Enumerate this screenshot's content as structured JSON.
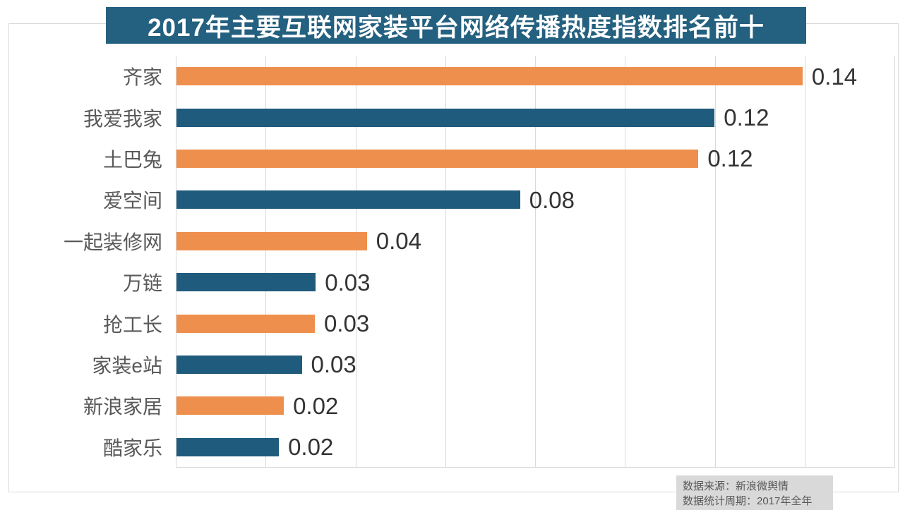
{
  "title": {
    "text": "2017年主要互联网家装平台网络传播热度指数排名前十",
    "bg_color": "#24607F",
    "text_color": "#FFFFFF"
  },
  "colors": {
    "bar_orange": "#EF8F4D",
    "bar_blue": "#1F5B7C",
    "gridline": "#D9D9D9",
    "outer_border": "#D9D9D9",
    "category_label": "#595959",
    "value_label": "#333333",
    "note_bg": "#D9D9D9",
    "note_text": "#595959"
  },
  "source_note": {
    "line1": "数据来源：新浪微舆情",
    "line2": "数据统计周期：2017年全年"
  },
  "chart_data": {
    "type": "bar",
    "orientation": "horizontal",
    "title": "2017年主要互联网家装平台网络传播热度指数排名前十",
    "categories": [
      "齐家",
      "我爱我家",
      "土巴兔",
      "爱空间",
      "一起装修网",
      "万链",
      "抢工长",
      "家装e站",
      "新浪家居",
      "酷家乐"
    ],
    "values": [
      0.14,
      0.12,
      0.12,
      0.08,
      0.04,
      0.03,
      0.03,
      0.03,
      0.02,
      0.02
    ],
    "value_labels": [
      "0.14",
      "0.12",
      "0.12",
      "0.08",
      "0.04",
      "0.03",
      "0.03",
      "0.03",
      "0.02",
      "0.02"
    ],
    "bar_lengths_precise": [
      0.1394,
      0.1198,
      0.1162,
      0.0765,
      0.0424,
      0.031,
      0.0308,
      0.0279,
      0.0239,
      0.0228
    ],
    "xlabel": "",
    "ylabel": "",
    "xlim": [
      0,
      0.16
    ],
    "grid_step": 0.02,
    "grid": true,
    "x_tick_labels_visible": false,
    "legend": false,
    "bar_colors_alternate": [
      "#EF8F4D",
      "#1F5B7C"
    ],
    "data_source": "新浪微舆情",
    "period": "2017年全年"
  }
}
